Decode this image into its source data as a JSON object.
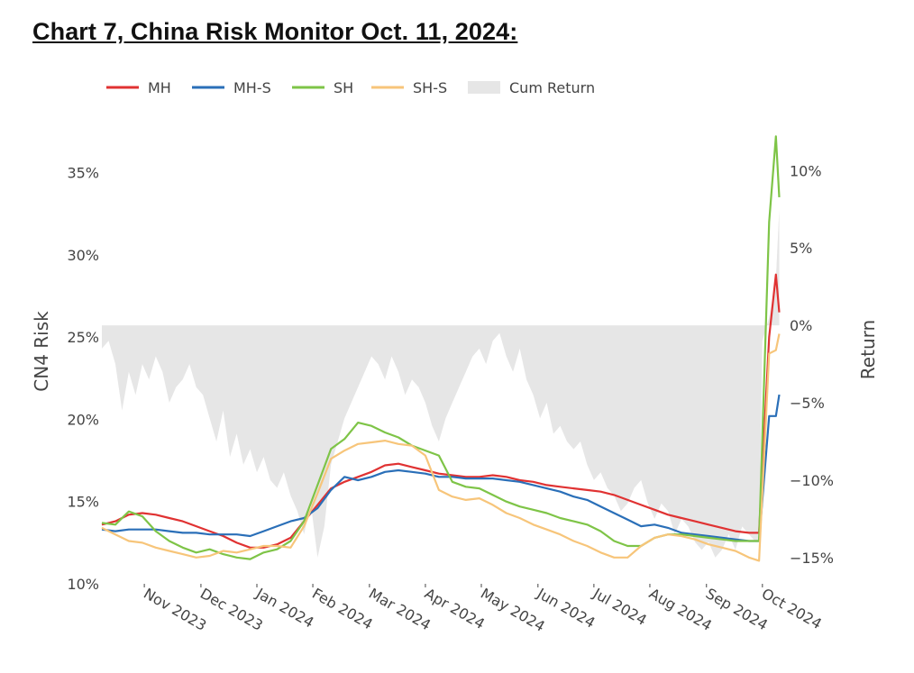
{
  "title": "Chart 7, China Risk Monitor Oct. 11, 2024:",
  "chart_data": {
    "type": "line",
    "ylabel": "CN4 Risk",
    "y2label": "Return",
    "ylim": [
      10,
      37
    ],
    "y2lim": [
      -16.7,
      12
    ],
    "yticks": [
      "10%",
      "15%",
      "20%",
      "25%",
      "30%",
      "35%"
    ],
    "yticks_values": [
      10,
      15,
      20,
      25,
      30,
      35
    ],
    "y2ticks": [
      "−15%",
      "−10%",
      "−5%",
      "0%",
      "5%",
      "10%"
    ],
    "y2ticks_values": [
      -15,
      -10,
      -5,
      0,
      5,
      10
    ],
    "xticks": [
      "Nov 2023",
      "Dec 2023",
      "Jan 2024",
      "Feb 2024",
      "Mar 2024",
      "Apr 2024",
      "May 2024",
      "Jun 2024",
      "Jul 2024",
      "Aug 2024",
      "Sep 2024",
      "Oct 2024"
    ],
    "xticks_values": [
      2023.833,
      2023.917,
      2024.0,
      2024.083,
      2024.167,
      2024.25,
      2024.333,
      2024.417,
      2024.5,
      2024.583,
      2024.667,
      2024.75
    ],
    "xlim": [
      2023.77,
      2024.785
    ],
    "legend_position": "top",
    "colors": {
      "MH": "#e03232",
      "MH-S": "#2a6fb8",
      "SH": "#7ec447",
      "SH-S": "#f7c57a",
      "Cum Return": "#e6e6e6"
    },
    "series": [
      {
        "name": "MH",
        "axis": "left",
        "x": [
          2023.77,
          2023.79,
          2023.81,
          2023.83,
          2023.85,
          2023.87,
          2023.89,
          2023.91,
          2023.93,
          2023.95,
          2023.97,
          2023.99,
          2024.01,
          2024.03,
          2024.05,
          2024.07,
          2024.09,
          2024.11,
          2024.13,
          2024.15,
          2024.17,
          2024.19,
          2024.21,
          2024.23,
          2024.25,
          2024.27,
          2024.29,
          2024.31,
          2024.33,
          2024.35,
          2024.37,
          2024.39,
          2024.41,
          2024.43,
          2024.45,
          2024.47,
          2024.49,
          2024.51,
          2024.53,
          2024.55,
          2024.57,
          2024.59,
          2024.61,
          2024.63,
          2024.65,
          2024.67,
          2024.69,
          2024.71,
          2024.73,
          2024.745,
          2024.76,
          2024.77,
          2024.775
        ],
        "values": [
          13.6,
          13.8,
          14.2,
          14.3,
          14.2,
          14.0,
          13.8,
          13.5,
          13.2,
          12.9,
          12.5,
          12.2,
          12.2,
          12.4,
          12.8,
          13.8,
          14.8,
          15.8,
          16.2,
          16.5,
          16.8,
          17.2,
          17.3,
          17.1,
          16.9,
          16.7,
          16.6,
          16.5,
          16.5,
          16.6,
          16.5,
          16.3,
          16.2,
          16.0,
          15.9,
          15.8,
          15.7,
          15.6,
          15.4,
          15.1,
          14.8,
          14.5,
          14.2,
          14.0,
          13.8,
          13.6,
          13.4,
          13.2,
          13.1,
          13.1,
          25.0,
          28.8,
          26.5
        ]
      },
      {
        "name": "MH-S",
        "axis": "left",
        "x": [
          2023.77,
          2023.79,
          2023.81,
          2023.83,
          2023.85,
          2023.87,
          2023.89,
          2023.91,
          2023.93,
          2023.95,
          2023.97,
          2023.99,
          2024.01,
          2024.03,
          2024.05,
          2024.07,
          2024.09,
          2024.11,
          2024.13,
          2024.15,
          2024.17,
          2024.19,
          2024.21,
          2024.23,
          2024.25,
          2024.27,
          2024.29,
          2024.31,
          2024.33,
          2024.35,
          2024.37,
          2024.39,
          2024.41,
          2024.43,
          2024.45,
          2024.47,
          2024.49,
          2024.51,
          2024.53,
          2024.55,
          2024.57,
          2024.59,
          2024.61,
          2024.63,
          2024.65,
          2024.67,
          2024.69,
          2024.71,
          2024.73,
          2024.745,
          2024.76,
          2024.77,
          2024.775
        ],
        "values": [
          13.3,
          13.2,
          13.3,
          13.3,
          13.3,
          13.2,
          13.1,
          13.1,
          13.0,
          13.0,
          13.0,
          12.9,
          13.2,
          13.5,
          13.8,
          14.0,
          14.6,
          15.7,
          16.5,
          16.3,
          16.5,
          16.8,
          16.9,
          16.8,
          16.7,
          16.5,
          16.5,
          16.4,
          16.4,
          16.4,
          16.3,
          16.2,
          16.0,
          15.8,
          15.6,
          15.3,
          15.1,
          14.7,
          14.3,
          13.9,
          13.5,
          13.6,
          13.4,
          13.1,
          13.0,
          12.9,
          12.8,
          12.7,
          12.6,
          12.6,
          20.2,
          20.2,
          21.5
        ]
      },
      {
        "name": "SH",
        "axis": "left",
        "x": [
          2023.77,
          2023.79,
          2023.81,
          2023.83,
          2023.85,
          2023.87,
          2023.89,
          2023.91,
          2023.93,
          2023.95,
          2023.97,
          2023.99,
          2024.01,
          2024.03,
          2024.05,
          2024.07,
          2024.09,
          2024.11,
          2024.13,
          2024.15,
          2024.17,
          2024.19,
          2024.21,
          2024.23,
          2024.25,
          2024.27,
          2024.29,
          2024.31,
          2024.33,
          2024.35,
          2024.37,
          2024.39,
          2024.41,
          2024.43,
          2024.45,
          2024.47,
          2024.49,
          2024.51,
          2024.53,
          2024.55,
          2024.57,
          2024.59,
          2024.61,
          2024.63,
          2024.65,
          2024.67,
          2024.69,
          2024.71,
          2024.73,
          2024.745,
          2024.76,
          2024.77,
          2024.775
        ],
        "values": [
          13.7,
          13.6,
          14.4,
          14.1,
          13.2,
          12.6,
          12.2,
          11.9,
          12.1,
          11.8,
          11.6,
          11.5,
          11.9,
          12.1,
          12.6,
          13.8,
          16.0,
          18.2,
          18.8,
          19.8,
          19.6,
          19.2,
          18.9,
          18.4,
          18.1,
          17.8,
          16.2,
          15.9,
          15.8,
          15.4,
          15.0,
          14.7,
          14.5,
          14.3,
          14.0,
          13.8,
          13.6,
          13.2,
          12.6,
          12.3,
          12.3,
          12.8,
          13.0,
          13.0,
          12.9,
          12.8,
          12.7,
          12.6,
          12.6,
          12.6,
          32.0,
          37.2,
          33.5
        ]
      },
      {
        "name": "SH-S",
        "axis": "left",
        "x": [
          2023.77,
          2023.79,
          2023.81,
          2023.83,
          2023.85,
          2023.87,
          2023.89,
          2023.91,
          2023.93,
          2023.95,
          2023.97,
          2023.99,
          2024.01,
          2024.03,
          2024.05,
          2024.07,
          2024.09,
          2024.11,
          2024.13,
          2024.15,
          2024.17,
          2024.19,
          2024.21,
          2024.23,
          2024.25,
          2024.27,
          2024.29,
          2024.31,
          2024.33,
          2024.35,
          2024.37,
          2024.39,
          2024.41,
          2024.43,
          2024.45,
          2024.47,
          2024.49,
          2024.51,
          2024.53,
          2024.55,
          2024.57,
          2024.59,
          2024.61,
          2024.63,
          2024.65,
          2024.67,
          2024.69,
          2024.71,
          2024.73,
          2024.745,
          2024.76,
          2024.77,
          2024.775
        ],
        "values": [
          13.4,
          13.0,
          12.6,
          12.5,
          12.2,
          12.0,
          11.8,
          11.6,
          11.7,
          12.0,
          11.9,
          12.1,
          12.3,
          12.3,
          12.2,
          13.5,
          15.5,
          17.6,
          18.1,
          18.5,
          18.6,
          18.7,
          18.5,
          18.4,
          17.8,
          15.7,
          15.3,
          15.1,
          15.2,
          14.8,
          14.3,
          14.0,
          13.6,
          13.3,
          13.0,
          12.6,
          12.3,
          11.9,
          11.6,
          11.6,
          12.3,
          12.8,
          13.0,
          12.9,
          12.7,
          12.4,
          12.2,
          12.0,
          11.6,
          11.4,
          24.0,
          24.2,
          25.2
        ]
      },
      {
        "name": "Cum Return",
        "axis": "right",
        "type": "area",
        "x": [
          2023.77,
          2023.78,
          2023.79,
          2023.8,
          2023.81,
          2023.82,
          2023.83,
          2023.84,
          2023.85,
          2023.86,
          2023.87,
          2023.88,
          2023.89,
          2023.9,
          2023.91,
          2023.92,
          2023.93,
          2023.94,
          2023.95,
          2023.96,
          2023.97,
          2023.98,
          2023.99,
          2024.0,
          2024.01,
          2024.02,
          2024.03,
          2024.04,
          2024.05,
          2024.06,
          2024.07,
          2024.08,
          2024.09,
          2024.1,
          2024.11,
          2024.12,
          2024.13,
          2024.14,
          2024.15,
          2024.16,
          2024.17,
          2024.18,
          2024.19,
          2024.2,
          2024.21,
          2024.22,
          2024.23,
          2024.24,
          2024.25,
          2024.26,
          2024.27,
          2024.28,
          2024.29,
          2024.3,
          2024.31,
          2024.32,
          2024.33,
          2024.34,
          2024.35,
          2024.36,
          2024.37,
          2024.38,
          2024.39,
          2024.4,
          2024.41,
          2024.42,
          2024.43,
          2024.44,
          2024.45,
          2024.46,
          2024.47,
          2024.48,
          2024.49,
          2024.5,
          2024.51,
          2024.52,
          2024.53,
          2024.54,
          2024.55,
          2024.56,
          2024.57,
          2024.58,
          2024.59,
          2024.6,
          2024.61,
          2024.62,
          2024.63,
          2024.64,
          2024.65,
          2024.66,
          2024.67,
          2024.68,
          2024.69,
          2024.7,
          2024.71,
          2024.72,
          2024.73,
          2024.74,
          2024.745,
          2024.75,
          2024.76,
          2024.77,
          2024.775
        ],
        "values": [
          -1.5,
          -1.0,
          -2.5,
          -5.5,
          -3.0,
          -4.5,
          -2.5,
          -3.5,
          -2.0,
          -3.0,
          -5.0,
          -4.0,
          -3.5,
          -2.5,
          -4.0,
          -4.5,
          -6.0,
          -7.5,
          -5.5,
          -8.5,
          -7.0,
          -9.0,
          -8.0,
          -9.5,
          -8.5,
          -10.0,
          -10.5,
          -9.5,
          -11.0,
          -12.0,
          -13.5,
          -11.5,
          -15.0,
          -13.0,
          -9.0,
          -7.5,
          -6.0,
          -5.0,
          -4.0,
          -3.0,
          -2.0,
          -2.5,
          -3.5,
          -2.0,
          -3.0,
          -4.5,
          -3.5,
          -4.0,
          -5.0,
          -6.5,
          -7.5,
          -6.0,
          -5.0,
          -4.0,
          -3.0,
          -2.0,
          -1.5,
          -2.5,
          -1.0,
          -0.5,
          -2.0,
          -3.0,
          -1.5,
          -3.5,
          -4.5,
          -6.0,
          -5.0,
          -7.0,
          -6.5,
          -7.5,
          -8.0,
          -7.5,
          -9.0,
          -10.0,
          -9.5,
          -10.5,
          -11.0,
          -12.0,
          -11.5,
          -10.5,
          -10.0,
          -11.5,
          -12.5,
          -11.5,
          -12.0,
          -13.5,
          -12.5,
          -13.0,
          -14.0,
          -14.5,
          -14.0,
          -15.0,
          -14.5,
          -13.5,
          -14.5,
          -13.0,
          -13.5,
          -14.0,
          -14.0,
          -1.0,
          0.5,
          3.0,
          7.5
        ]
      }
    ]
  }
}
